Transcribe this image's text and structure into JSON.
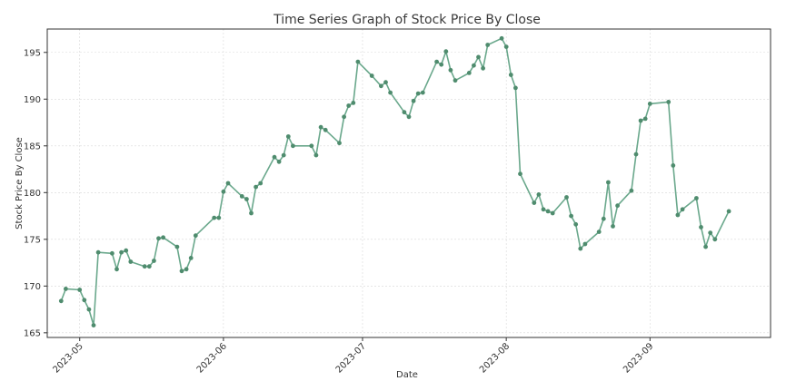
{
  "chart_data": {
    "type": "line",
    "title": "Time Series Graph of Stock Price By Close",
    "xlabel": "Date",
    "ylabel": "Stock Price By Close",
    "x_ticks": [
      "2023-05",
      "2023-06",
      "2023-07",
      "2023-08",
      "2023-09"
    ],
    "y_ticks": [
      165,
      170,
      175,
      180,
      185,
      190,
      195
    ],
    "ylim": [
      164.5,
      197.5
    ],
    "xlim": [
      "2023-04-24",
      "2023-09-27"
    ],
    "grid": true,
    "line_color": "#6aa88c",
    "marker_color": "#4f8c6e",
    "series": [
      {
        "x": [
          "2023-04-27",
          "2023-04-28",
          "2023-05-01",
          "2023-05-02",
          "2023-05-03",
          "2023-05-04",
          "2023-05-05",
          "2023-05-08",
          "2023-05-09",
          "2023-05-10",
          "2023-05-11",
          "2023-05-12",
          "2023-05-15",
          "2023-05-16",
          "2023-05-17",
          "2023-05-18",
          "2023-05-19",
          "2023-05-22",
          "2023-05-23",
          "2023-05-24",
          "2023-05-25",
          "2023-05-26",
          "2023-05-30",
          "2023-05-31",
          "2023-06-01",
          "2023-06-02",
          "2023-06-05",
          "2023-06-06",
          "2023-06-07",
          "2023-06-08",
          "2023-06-09",
          "2023-06-12",
          "2023-06-13",
          "2023-06-14",
          "2023-06-15",
          "2023-06-16",
          "2023-06-20",
          "2023-06-21",
          "2023-06-22",
          "2023-06-23",
          "2023-06-26",
          "2023-06-27",
          "2023-06-28",
          "2023-06-29",
          "2023-06-30",
          "2023-07-03",
          "2023-07-05",
          "2023-07-06",
          "2023-07-07",
          "2023-07-10",
          "2023-07-11",
          "2023-07-12",
          "2023-07-13",
          "2023-07-14",
          "2023-07-17",
          "2023-07-18",
          "2023-07-19",
          "2023-07-20",
          "2023-07-21",
          "2023-07-24",
          "2023-07-25",
          "2023-07-26",
          "2023-07-27",
          "2023-07-28",
          "2023-07-31",
          "2023-08-01",
          "2023-08-02",
          "2023-08-03",
          "2023-08-04",
          "2023-08-07",
          "2023-08-08",
          "2023-08-09",
          "2023-08-10",
          "2023-08-11",
          "2023-08-14",
          "2023-08-15",
          "2023-08-16",
          "2023-08-17",
          "2023-08-18",
          "2023-08-21",
          "2023-08-22",
          "2023-08-23",
          "2023-08-24",
          "2023-08-25",
          "2023-08-28",
          "2023-08-29",
          "2023-08-30",
          "2023-08-31",
          "2023-09-01",
          "2023-09-05",
          "2023-09-06",
          "2023-09-07",
          "2023-09-08",
          "2023-09-11",
          "2023-09-12",
          "2023-09-13",
          "2023-09-14",
          "2023-09-15",
          "2023-09-18"
        ],
        "y": [
          168.4,
          169.7,
          169.6,
          168.5,
          167.5,
          165.8,
          173.6,
          173.5,
          171.8,
          173.6,
          173.8,
          172.6,
          172.1,
          172.1,
          172.7,
          175.1,
          175.2,
          174.2,
          171.6,
          171.8,
          173.0,
          175.4,
          177.3,
          177.3,
          180.1,
          181.0,
          179.6,
          179.3,
          177.8,
          180.6,
          181.0,
          183.8,
          183.3,
          184.0,
          186.0,
          185.0,
          185.0,
          184.0,
          187.0,
          186.7,
          185.3,
          188.1,
          189.3,
          189.6,
          194.0,
          192.5,
          191.4,
          191.8,
          190.7,
          188.6,
          188.1,
          189.8,
          190.6,
          190.7,
          194.0,
          193.7,
          195.1,
          193.1,
          192.0,
          192.8,
          193.6,
          194.5,
          193.3,
          195.8,
          196.5,
          195.6,
          192.6,
          191.2,
          182.0,
          178.9,
          179.8,
          178.2,
          178.0,
          177.8,
          179.5,
          177.5,
          176.6,
          174.0,
          174.5,
          175.8,
          177.2,
          181.1,
          176.4,
          178.6,
          180.2,
          184.1,
          187.7,
          187.9,
          189.5,
          189.7,
          182.9,
          177.6,
          178.2,
          179.4,
          176.3,
          174.2,
          175.7,
          175.0,
          178.0
        ]
      }
    ]
  }
}
